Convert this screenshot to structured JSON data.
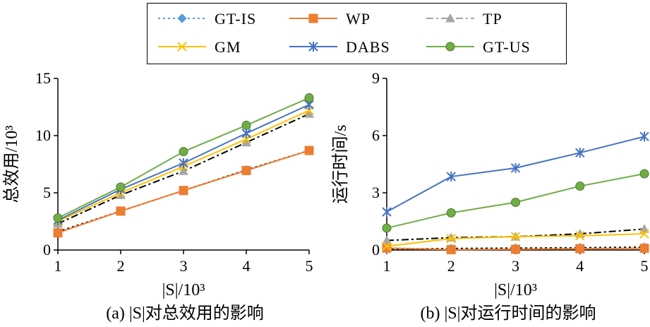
{
  "legend": [
    {
      "name": "GT-IS",
      "color": "#5b9bd5",
      "marker": "diamond",
      "dash": "dot"
    },
    {
      "name": "WP",
      "color": "#ed7d31",
      "marker": "square",
      "dash": "solid"
    },
    {
      "name": "TP",
      "color": "#a5a5a5",
      "marker": "triangle",
      "dash": "dashdot"
    },
    {
      "name": "GM",
      "color": "#ffc000",
      "marker": "x",
      "dash": "solid"
    },
    {
      "name": "DABS",
      "color": "#4472c4",
      "marker": "star",
      "dash": "solid"
    },
    {
      "name": "GT-US",
      "color": "#70ad47",
      "marker": "circle",
      "dash": "solid"
    }
  ],
  "chart_data": [
    {
      "type": "line",
      "caption": "(a) |S|对总效用的影响",
      "xlabel": "|S|/10³",
      "ylabel": "总效用/10³",
      "xlim": [
        1,
        5
      ],
      "ylim": [
        0,
        15
      ],
      "xticks": [
        1,
        2,
        3,
        4,
        5
      ],
      "yticks": [
        0,
        5,
        10,
        15
      ],
      "grid": false,
      "series": [
        {
          "name": "GT-IS",
          "values": [
            [
              1,
              1.6
            ],
            [
              2,
              3.4
            ],
            [
              3,
              5.2
            ],
            [
              4,
              7.0
            ],
            [
              5,
              8.7
            ]
          ]
        },
        {
          "name": "WP",
          "values": [
            [
              1,
              1.5
            ],
            [
              2,
              3.4
            ],
            [
              3,
              5.2
            ],
            [
              4,
              6.95
            ],
            [
              5,
              8.7
            ]
          ]
        },
        {
          "name": "TP",
          "values": [
            [
              1,
              2.3
            ],
            [
              2,
              4.8
            ],
            [
              3,
              6.9
            ],
            [
              4,
              9.4
            ],
            [
              5,
              11.9
            ]
          ]
        },
        {
          "name": "GM",
          "values": [
            [
              1,
              2.5
            ],
            [
              2,
              5.0
            ],
            [
              3,
              7.3
            ],
            [
              4,
              9.7
            ],
            [
              5,
              12.2
            ]
          ]
        },
        {
          "name": "DABS",
          "values": [
            [
              1,
              2.6
            ],
            [
              2,
              5.3
            ],
            [
              3,
              7.6
            ],
            [
              4,
              10.2
            ],
            [
              5,
              12.7
            ]
          ]
        },
        {
          "name": "GT-US",
          "values": [
            [
              1,
              2.8
            ],
            [
              2,
              5.5
            ],
            [
              3,
              8.6
            ],
            [
              4,
              10.9
            ],
            [
              5,
              13.3
            ]
          ]
        }
      ]
    },
    {
      "type": "line",
      "caption": "(b) |S|对运行时间的影响",
      "xlabel": "|S|/10³",
      "ylabel": "运行时间/s",
      "xlim": [
        1,
        5
      ],
      "ylim": [
        0,
        9
      ],
      "xticks": [
        1,
        2,
        3,
        4,
        5
      ],
      "yticks": [
        0,
        3,
        6,
        9
      ],
      "grid": false,
      "series": [
        {
          "name": "GT-IS",
          "values": [
            [
              1,
              0.05
            ],
            [
              2,
              0.08
            ],
            [
              3,
              0.1
            ],
            [
              4,
              0.12
            ],
            [
              5,
              0.15
            ]
          ]
        },
        {
          "name": "WP",
          "values": [
            [
              1,
              0.1
            ],
            [
              2,
              0.02
            ],
            [
              3,
              0.04
            ],
            [
              4,
              0.07
            ],
            [
              5,
              0.09
            ]
          ]
        },
        {
          "name": "TP",
          "values": [
            [
              1,
              0.5
            ],
            [
              2,
              0.65
            ],
            [
              3,
              0.7
            ],
            [
              4,
              0.85
            ],
            [
              5,
              1.1
            ]
          ]
        },
        {
          "name": "GM",
          "values": [
            [
              1,
              0.2
            ],
            [
              2,
              0.6
            ],
            [
              3,
              0.7
            ],
            [
              4,
              0.75
            ],
            [
              5,
              0.85
            ]
          ]
        },
        {
          "name": "DABS",
          "values": [
            [
              1,
              2.0
            ],
            [
              2,
              3.85
            ],
            [
              3,
              4.3
            ],
            [
              4,
              5.1
            ],
            [
              5,
              5.95
            ]
          ]
        },
        {
          "name": "GT-US",
          "values": [
            [
              1,
              1.15
            ],
            [
              2,
              1.95
            ],
            [
              3,
              2.5
            ],
            [
              4,
              3.35
            ],
            [
              5,
              4.0
            ]
          ]
        }
      ]
    }
  ]
}
